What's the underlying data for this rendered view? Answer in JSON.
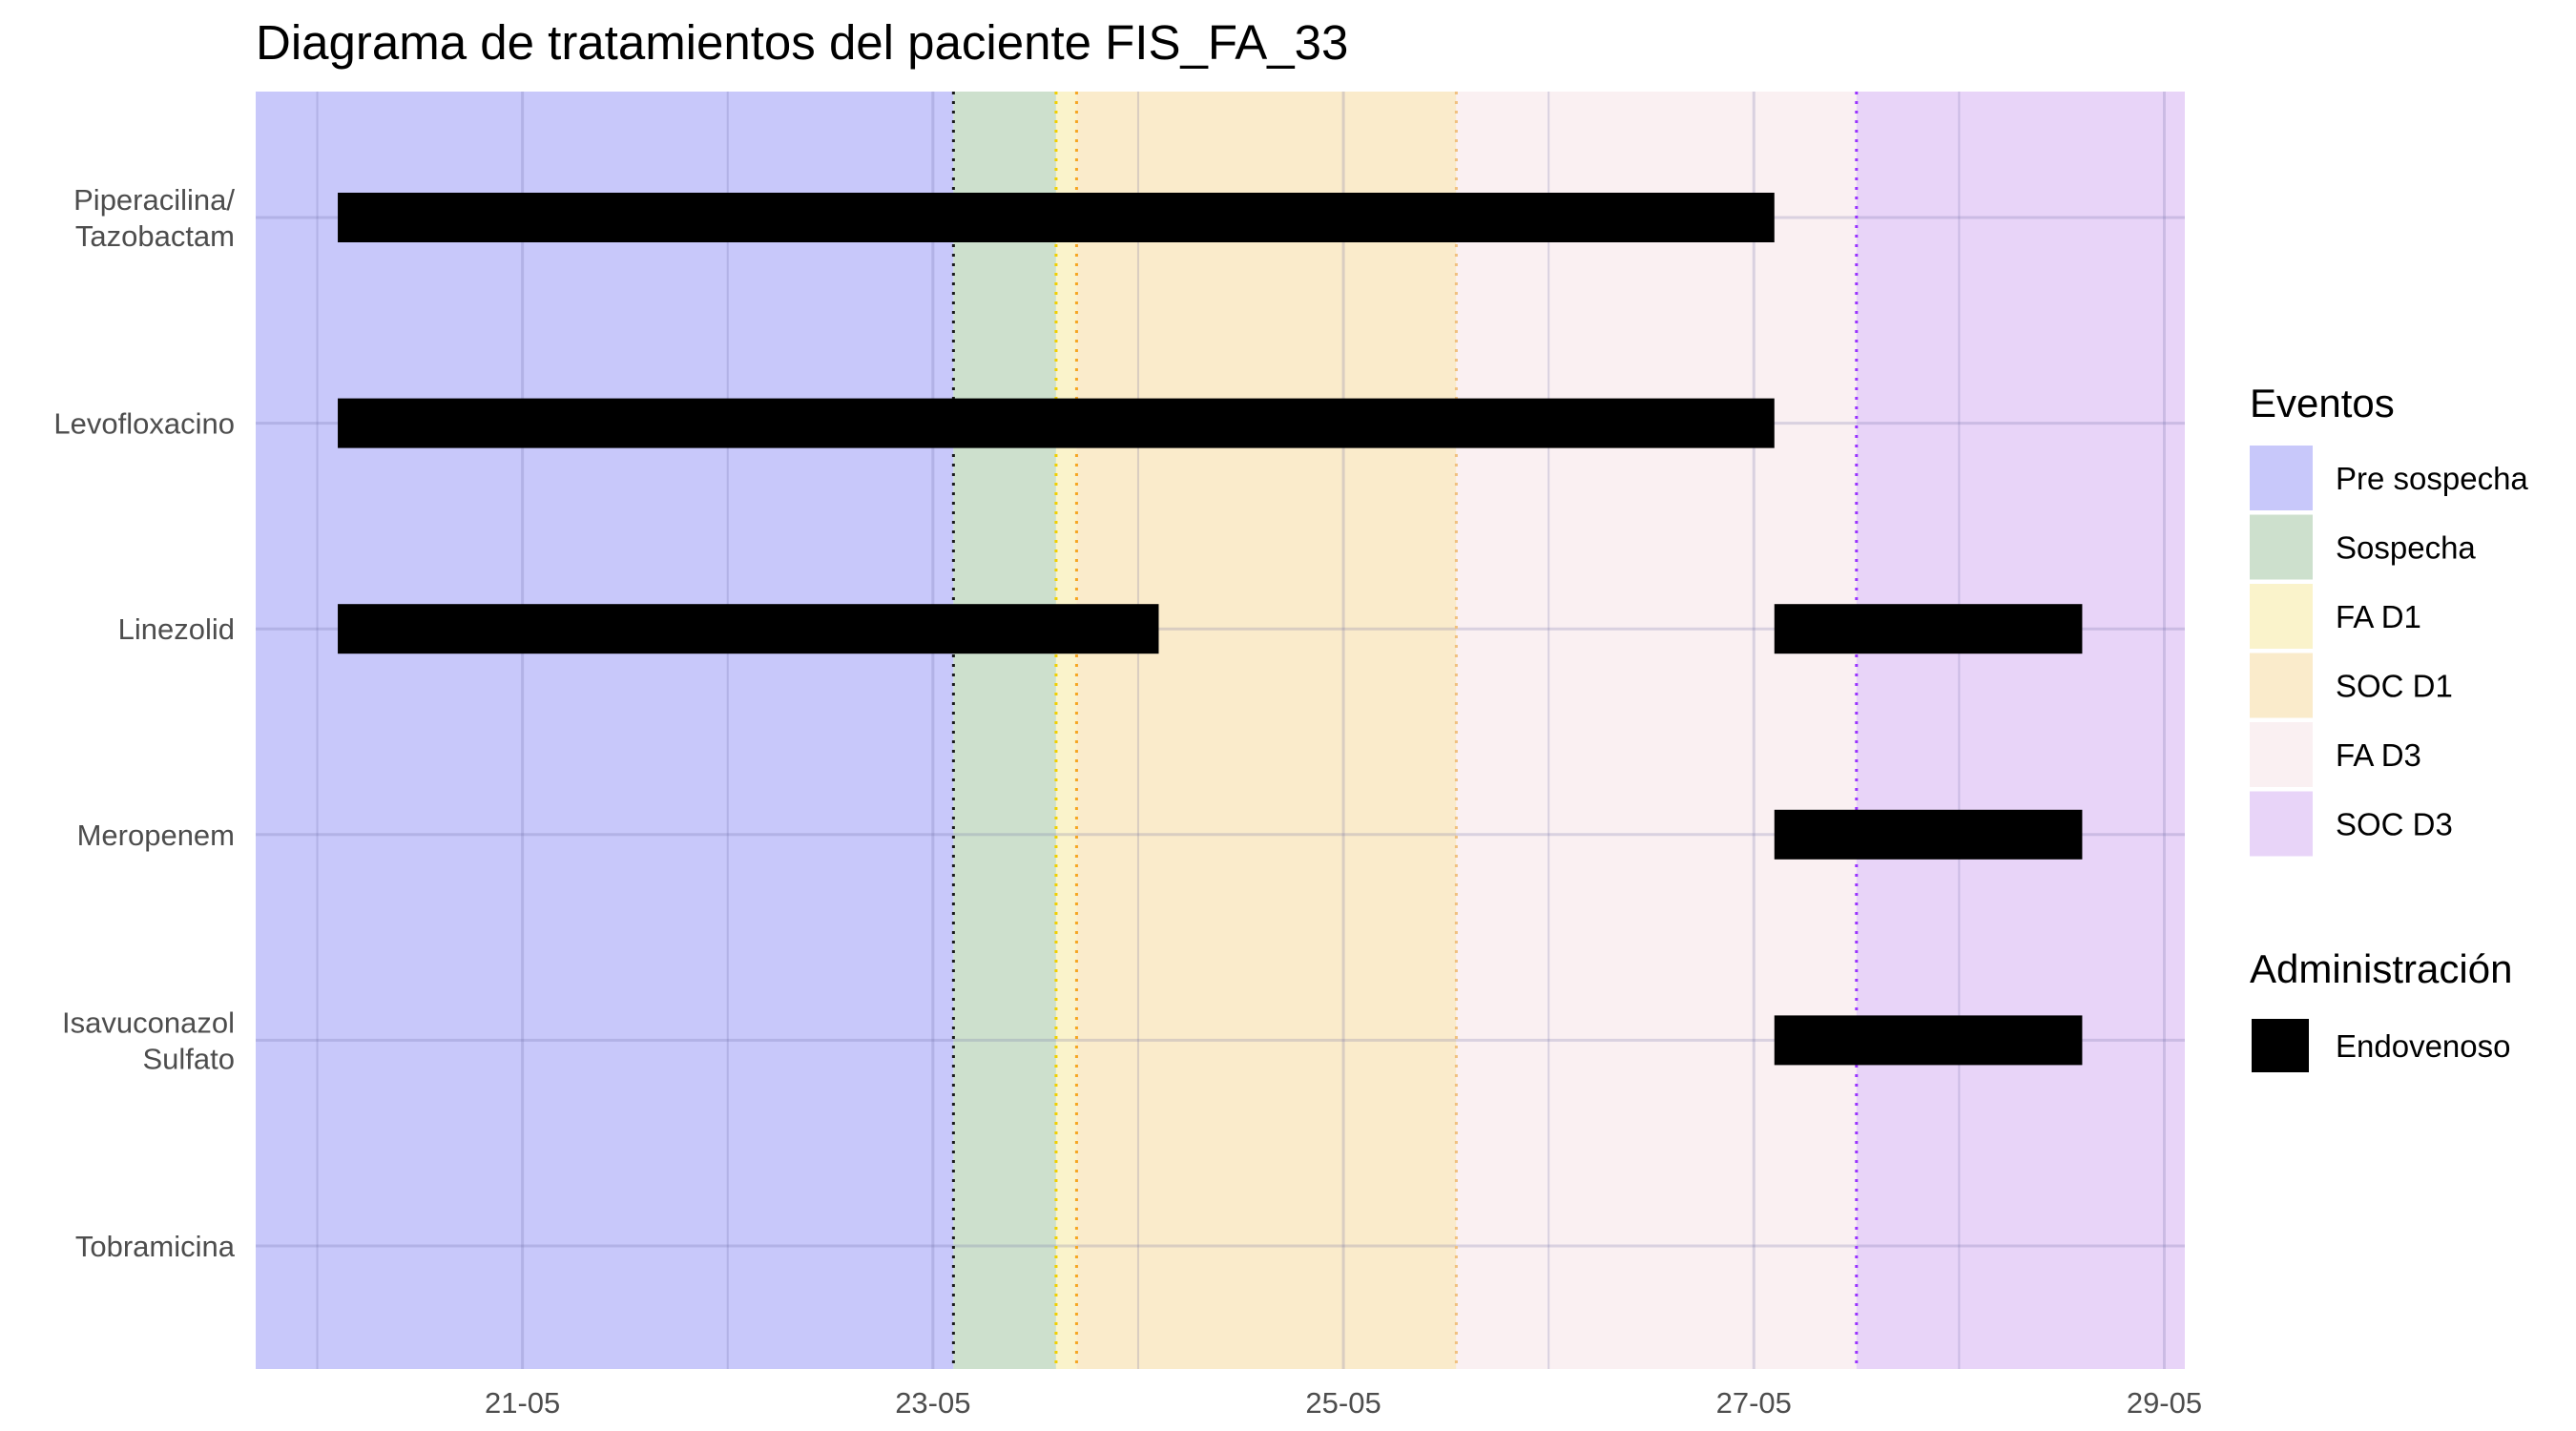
{
  "chart_data": {
    "type": "gantt",
    "title": "Diagrama de tratamientos del paciente FIS_FA_33",
    "xlabel": "",
    "ylabel": "",
    "x_axis": {
      "ticks": [
        "2000-05-21",
        "2000-05-23",
        "2000-05-25",
        "2000-05-27",
        "2000-05-29"
      ],
      "tick_labels": [
        "21-05",
        "23-05",
        "25-05",
        "27-05",
        "29-05"
      ],
      "range": [
        "2000-05-19T16:48",
        "2000-05-29T02:24"
      ]
    },
    "categories": [
      [
        "Piperacilina/",
        "Tazobactam"
      ],
      [
        "Levofloxacino"
      ],
      [
        "Linezolid"
      ],
      [
        "Meropenem"
      ],
      [
        "Isavuconazol",
        "Sulfato"
      ],
      [
        "Tobramicina"
      ]
    ],
    "events": [
      {
        "name": "Pre sospecha",
        "start": "2000-05-19T16:48",
        "end": "2000-05-23T02:24",
        "color": "#c8c8fa"
      },
      {
        "name": "Sospecha",
        "start": "2000-05-23T02:24",
        "end": "2000-05-23T14:24",
        "color": "#cde0cd"
      },
      {
        "name": "FA D1",
        "start": "2000-05-23T14:24",
        "end": "2000-05-23T16:48",
        "color": "#faf3cb"
      },
      {
        "name": "SOC D1",
        "start": "2000-05-23T16:48",
        "end": "2000-05-25T13:12",
        "color": "#faebcb"
      },
      {
        "name": "FA D3",
        "start": "2000-05-25T13:12",
        "end": "2000-05-27T12:00",
        "color": "#faf0f2"
      },
      {
        "name": "SOC D3",
        "start": "2000-05-27T12:00",
        "end": "2000-05-29T02:24",
        "color": "#e8d4f8"
      }
    ],
    "event_lines": [
      {
        "x": "2000-05-23T02:24",
        "color": "#1a1a1a"
      },
      {
        "x": "2000-05-23T14:24",
        "color": "#f0d000"
      },
      {
        "x": "2000-05-23T16:48",
        "color": "#f5a623"
      },
      {
        "x": "2000-05-25T13:12",
        "color": "#f0c080"
      },
      {
        "x": "2000-05-27T12:00",
        "color": "#9933ff"
      }
    ],
    "series": [
      {
        "name": "Endovenoso",
        "color": "#000000",
        "bars": [
          {
            "category": 0,
            "start": "2000-05-20T02:24",
            "end": "2000-05-27T02:24"
          },
          {
            "category": 1,
            "start": "2000-05-20T02:24",
            "end": "2000-05-27T02:24"
          },
          {
            "category": 2,
            "start": "2000-05-20T02:24",
            "end": "2000-05-24T02:24"
          },
          {
            "category": 2,
            "start": "2000-05-27T02:24",
            "end": "2000-05-28T14:24"
          },
          {
            "category": 3,
            "start": "2000-05-27T02:24",
            "end": "2000-05-28T14:24"
          },
          {
            "category": 4,
            "start": "2000-05-27T02:24",
            "end": "2000-05-28T14:24"
          }
        ]
      }
    ],
    "legends": [
      {
        "title": "Eventos",
        "items": [
          "Pre sospecha",
          "Sospecha",
          "FA D1",
          "SOC D1",
          "FA D3",
          "SOC D3"
        ]
      },
      {
        "title": "Administración",
        "items": [
          "Endovenoso"
        ]
      }
    ],
    "grid": true,
    "legend_position": "right"
  }
}
